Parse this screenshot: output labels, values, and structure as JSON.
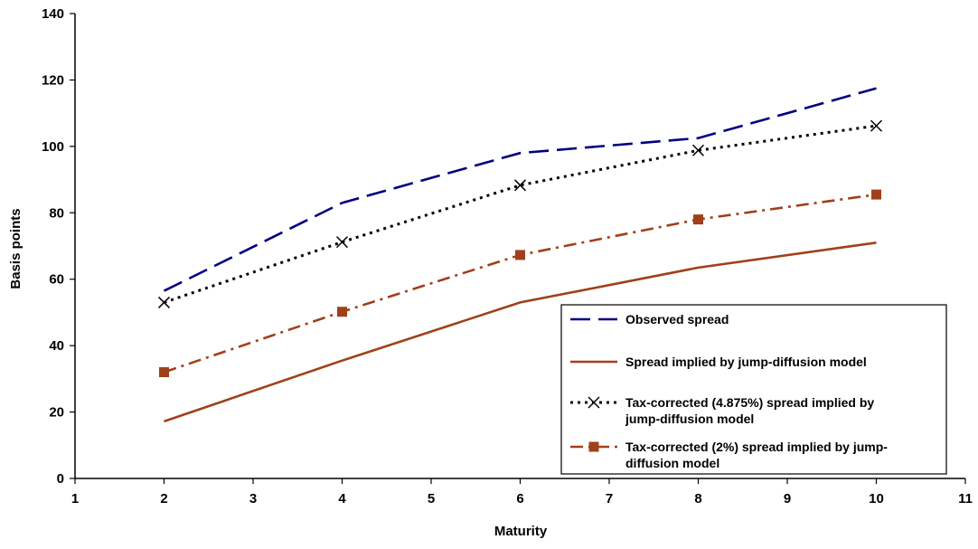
{
  "chart_data": {
    "type": "line",
    "title": "",
    "xlabel": "Maturity",
    "ylabel": "Basis points",
    "xlim": [
      1,
      11
    ],
    "ylim": [
      0,
      140
    ],
    "x_ticks": [
      "1",
      "2",
      "3",
      "4",
      "5",
      "6",
      "7",
      "8",
      "9",
      "10",
      "11"
    ],
    "y_ticks": [
      "0",
      "20",
      "40",
      "60",
      "80",
      "100",
      "120",
      "140"
    ],
    "grid": false,
    "legend_position": "bottom-right",
    "x": [
      2,
      4,
      6,
      8,
      10
    ],
    "series": [
      {
        "name": "Observed spread",
        "values": [
          56.5,
          83,
          98,
          102.5,
          117.5
        ],
        "color": "#000080",
        "style": "long-dash",
        "marker": "none"
      },
      {
        "name": "Spread implied by jump-diffusion model",
        "values": [
          17.2,
          35.5,
          53,
          63.5,
          71
        ],
        "color": "#A0401A",
        "style": "solid",
        "marker": "none"
      },
      {
        "name": "Tax-corrected (4.875%) spread implied by jump-diffusion model",
        "legend_lines": [
          "Tax-corrected (4.875%) spread implied by",
          "jump-diffusion model"
        ],
        "values": [
          53,
          71.2,
          88.3,
          98.8,
          106.2
        ],
        "color": "#000000",
        "style": "dotted",
        "marker": "x"
      },
      {
        "name": "Tax-corrected (2%) spread implied by jump-diffusion model",
        "legend_lines": [
          "Tax-corrected (2%) spread implied by jump-",
          "diffusion model"
        ],
        "values": [
          32,
          50.2,
          67.3,
          78,
          85.5
        ],
        "color": "#A0401A",
        "style": "dash-dot",
        "marker": "square"
      }
    ]
  }
}
